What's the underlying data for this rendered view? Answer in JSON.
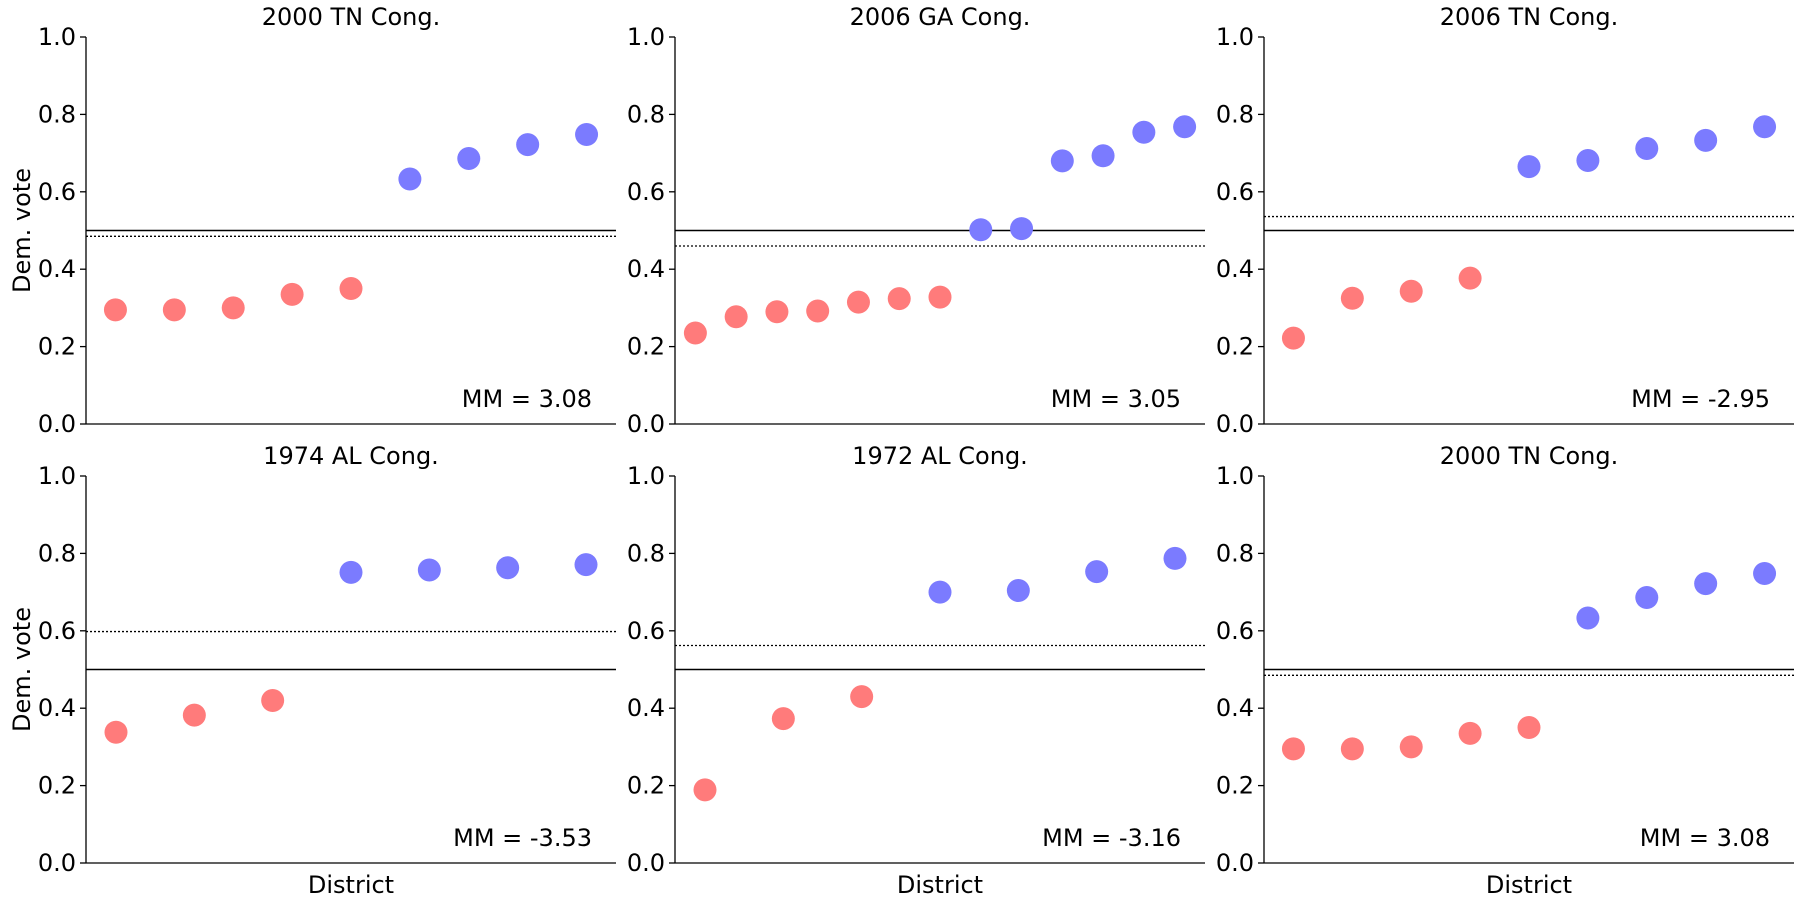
{
  "figure": {
    "ylabel": "Dem. vote",
    "xlabel": "District"
  },
  "colors": {
    "republican": "#ff7b7b",
    "democrat": "#7b7bff",
    "axis": "#000000"
  },
  "chart_data": [
    {
      "type": "scatter",
      "title": "2000 TN Cong.",
      "ylabel": "Dem. vote",
      "xlabel": "",
      "ylim": [
        0,
        1
      ],
      "yticks": [
        "0.0",
        "0.2",
        "0.4",
        "0.6",
        "0.8",
        "1.0"
      ],
      "values": [
        0.295,
        0.295,
        0.3,
        0.335,
        0.35,
        0.633,
        0.686,
        0.722,
        0.748
      ],
      "reference_line": 0.5,
      "mean_line": 0.485,
      "annotation": "MM = 3.08"
    },
    {
      "type": "scatter",
      "title": "2006 GA Cong.",
      "ylabel": "",
      "xlabel": "",
      "ylim": [
        0,
        1
      ],
      "yticks": [
        "0.0",
        "0.2",
        "0.4",
        "0.6",
        "0.8",
        "1.0"
      ],
      "values": [
        0.235,
        0.277,
        0.29,
        0.292,
        0.315,
        0.324,
        0.328,
        0.502,
        0.505,
        0.68,
        0.693,
        0.754,
        0.768
      ],
      "reference_line": 0.5,
      "mean_line": 0.46,
      "annotation": "MM = 3.05"
    },
    {
      "type": "scatter",
      "title": "2006 TN Cong.",
      "ylabel": "",
      "xlabel": "",
      "ylim": [
        0,
        1
      ],
      "yticks": [
        "0.0",
        "0.2",
        "0.4",
        "0.6",
        "0.8",
        "1.0"
      ],
      "values": [
        0.222,
        0.325,
        0.343,
        0.377,
        0.665,
        0.681,
        0.712,
        0.733,
        0.768
      ],
      "reference_line": 0.5,
      "mean_line": 0.536,
      "annotation": "MM = -2.95"
    },
    {
      "type": "scatter",
      "title": "1974 AL Cong.",
      "ylabel": "Dem. vote",
      "xlabel": "District",
      "ylim": [
        0,
        1
      ],
      "yticks": [
        "0.0",
        "0.2",
        "0.4",
        "0.6",
        "0.8",
        "1.0"
      ],
      "values": [
        0.338,
        0.382,
        0.42,
        0.751,
        0.757,
        0.763,
        0.771
      ],
      "reference_line": 0.5,
      "mean_line": 0.598,
      "annotation": "MM = -3.53"
    },
    {
      "type": "scatter",
      "title": "1972 AL Cong.",
      "ylabel": "",
      "xlabel": "District",
      "ylim": [
        0,
        1
      ],
      "yticks": [
        "0.0",
        "0.2",
        "0.4",
        "0.6",
        "0.8",
        "1.0"
      ],
      "values": [
        0.189,
        0.373,
        0.43,
        0.7,
        0.704,
        0.753,
        0.787
      ],
      "reference_line": 0.5,
      "mean_line": 0.562,
      "annotation": "MM = -3.16"
    },
    {
      "type": "scatter",
      "title": "2000 TN Cong.",
      "ylabel": "",
      "xlabel": "District",
      "ylim": [
        0,
        1
      ],
      "yticks": [
        "0.0",
        "0.2",
        "0.4",
        "0.6",
        "0.8",
        "1.0"
      ],
      "values": [
        0.295,
        0.295,
        0.3,
        0.335,
        0.35,
        0.633,
        0.686,
        0.722,
        0.748
      ],
      "reference_line": 0.5,
      "mean_line": 0.485,
      "annotation": "MM = 3.08"
    }
  ]
}
